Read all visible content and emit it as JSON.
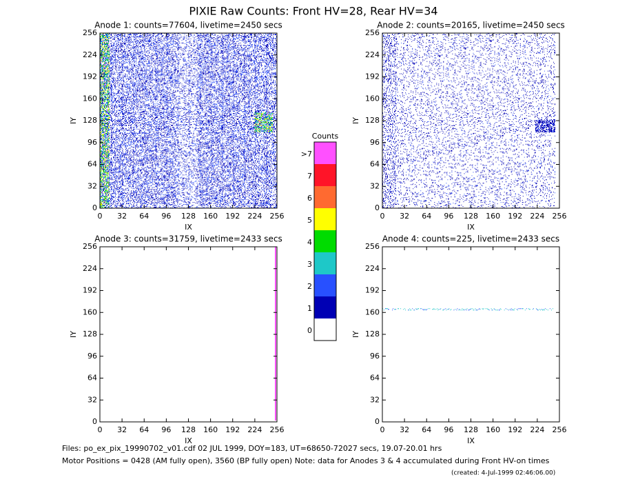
{
  "title": "PIXIE Raw Counts:  Front HV=28, Rear HV=34",
  "chart_data": [
    {
      "type": "heatmap",
      "title": "Anode 1: counts=77604, livetime=2450 secs",
      "xlabel": "IX",
      "ylabel": "IY",
      "xlim": [
        0,
        256
      ],
      "ylim": [
        0,
        256
      ],
      "xticks": [
        0,
        32,
        64,
        96,
        128,
        160,
        192,
        224,
        256
      ],
      "yticks": [
        0,
        32,
        64,
        96,
        128,
        160,
        192,
        224,
        256
      ]
    },
    {
      "type": "heatmap",
      "title": "Anode 2: counts=20165, livetime=2450 secs",
      "xlabel": "IX",
      "ylabel": "IY",
      "xlim": [
        0,
        256
      ],
      "ylim": [
        0,
        256
      ],
      "xticks": [
        0,
        32,
        64,
        96,
        128,
        160,
        192,
        224,
        256
      ],
      "yticks": [
        0,
        32,
        64,
        96,
        128,
        160,
        192,
        224,
        256
      ]
    },
    {
      "type": "heatmap",
      "title": "Anode 3: counts=31759, livetime=2433 secs",
      "xlabel": "IX",
      "ylabel": "IY",
      "xlim": [
        0,
        256
      ],
      "ylim": [
        0,
        256
      ],
      "xticks": [
        0,
        32,
        64,
        96,
        128,
        160,
        192,
        224,
        256
      ],
      "yticks": [
        0,
        32,
        64,
        96,
        128,
        160,
        192,
        224,
        256
      ]
    },
    {
      "type": "heatmap",
      "title": "Anode 4: counts=225, livetime=2433 secs",
      "xlabel": "IX",
      "ylabel": "IY",
      "xlim": [
        0,
        256
      ],
      "ylim": [
        0,
        256
      ],
      "xticks": [
        0,
        32,
        64,
        96,
        128,
        160,
        192,
        224,
        256
      ],
      "yticks": [
        0,
        32,
        64,
        96,
        128,
        160,
        192,
        224,
        256
      ]
    }
  ],
  "colorbar": {
    "title": "Counts",
    "ticks": [
      0,
      1,
      2,
      3,
      4,
      5,
      6,
      7,
      {
        "value": 8,
        "label": ">7"
      }
    ],
    "colors": [
      "#ffffff",
      "#0000b4",
      "#2850ff",
      "#1ec8c8",
      "#00dc00",
      "#ffff00",
      "#ff6a30",
      "#ff1428",
      "#ff50ff"
    ]
  },
  "footer": [
    "Files: po_ex_pix_19990702_v01.cdf    02 JUL 1999, DOY=183, UT=68650-72027 secs, 19.07-20.01 hrs",
    "Motor Positions = 0428 (AM fully open), 3560 (BP fully open)    Note: data for Anodes 3 & 4 accumulated during Front HV-on times",
    "(created:  4-Jul-1999 02:46:06.00)"
  ]
}
